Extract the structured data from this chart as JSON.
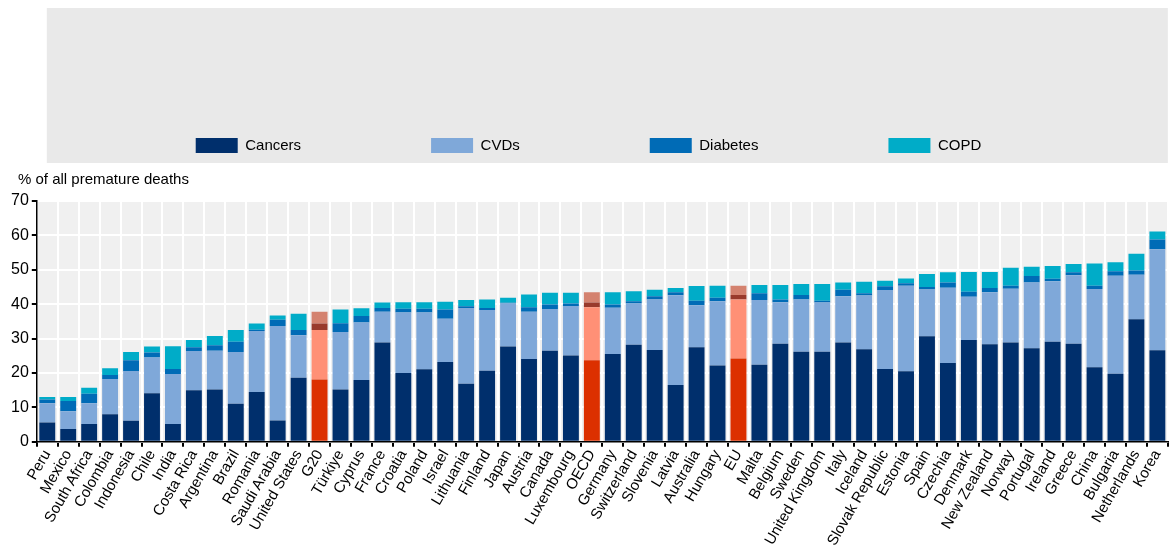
{
  "chart_data": {
    "type": "bar",
    "stacked": true,
    "ylabel": "% of all premature deaths",
    "categories": [
      "Peru",
      "Mexico",
      "South Africa",
      "Colombia",
      "Indonesia",
      "Chile",
      "India",
      "Costa Rica",
      "Argentina",
      "Brazil",
      "Romania",
      "Saudi Arabia",
      "United States",
      "G20",
      "Türkiye",
      "Cyprus",
      "France",
      "Croatia",
      "Poland",
      "Israel",
      "Lithuania",
      "Finland",
      "Japan",
      "Austria",
      "Canada",
      "Luxembourg",
      "OECD",
      "Germany",
      "Switzerland",
      "Slovenia",
      "Latvia",
      "Australia",
      "Hungary",
      "EU",
      "Malta",
      "Belgium",
      "Sweden",
      "United Kingdom",
      "Italy",
      "Iceland",
      "Slovak Republic",
      "Estonia",
      "Spain",
      "Czechia",
      "Denmark",
      "New Zealand",
      "Norway",
      "Portugal",
      "Ireland",
      "Greece",
      "China",
      "Bulgaria",
      "Netherlands",
      "Korea"
    ],
    "series": [
      {
        "name": "Cancers",
        "color": "#002f6c",
        "colors": [
          "#002f6c",
          "#002f6c",
          "#002f6c",
          "#002f6c",
          "#002f6c",
          "#002f6c",
          "#002f6c",
          "#002f6c",
          "#002f6c",
          "#002f6c",
          "#002f6c",
          "#002f6c",
          "#002f6c",
          "#dc3000",
          "#002f6c",
          "#002f6c",
          "#002f6c",
          "#002f6c",
          "#002f6c",
          "#002f6c",
          "#002f6c",
          "#002f6c",
          "#002f6c",
          "#002f6c",
          "#002f6c",
          "#002f6c",
          "#dc3000",
          "#002f6c",
          "#002f6c",
          "#002f6c",
          "#002f6c",
          "#002f6c",
          "#002f6c",
          "#dc3000",
          "#002f6c",
          "#002f6c",
          "#002f6c",
          "#002f6c",
          "#002f6c",
          "#002f6c",
          "#002f6c",
          "#002f6c",
          "#002f6c",
          "#002f6c",
          "#002f6c",
          "#002f6c",
          "#002f6c",
          "#002f6c",
          "#002f6c",
          "#002f6c",
          "#002f6c",
          "#002f6c",
          "#002f6c",
          "#002f6c"
        ],
        "values": [
          5.6,
          3.7,
          5.2,
          8.0,
          6.1,
          14.1,
          5.2,
          15.0,
          15.2,
          11.1,
          14.5,
          6.2,
          18.6,
          18.1,
          15.2,
          18.0,
          28.9,
          20.0,
          21.1,
          23.2,
          16.9,
          20.7,
          27.7,
          24.1,
          26.5,
          25.1,
          23.7,
          25.5,
          28.2,
          26.7,
          16.5,
          27.5,
          22.2,
          24.2,
          22.4,
          28.5,
          26.2,
          26.2,
          28.9,
          26.9,
          21.2,
          20.5,
          30.7,
          22.9,
          29.6,
          28.4,
          28.9,
          27.2,
          29.1,
          28.5,
          21.7,
          19.8,
          35.6,
          26.6
        ]
      },
      {
        "name": "CVDs",
        "color": "#7fa8d9",
        "colors": [
          "#7fa8d9",
          "#7fa8d9",
          "#7fa8d9",
          "#7fa8d9",
          "#7fa8d9",
          "#7fa8d9",
          "#7fa8d9",
          "#7fa8d9",
          "#7fa8d9",
          "#7fa8d9",
          "#7fa8d9",
          "#7fa8d9",
          "#7fa8d9",
          "#ff9076",
          "#7fa8d9",
          "#7fa8d9",
          "#7fa8d9",
          "#7fa8d9",
          "#7fa8d9",
          "#7fa8d9",
          "#7fa8d9",
          "#7fa8d9",
          "#7fa8d9",
          "#7fa8d9",
          "#7fa8d9",
          "#7fa8d9",
          "#ff9076",
          "#7fa8d9",
          "#7fa8d9",
          "#7fa8d9",
          "#7fa8d9",
          "#7fa8d9",
          "#7fa8d9",
          "#ff9076",
          "#7fa8d9",
          "#7fa8d9",
          "#7fa8d9",
          "#7fa8d9",
          "#7fa8d9",
          "#7fa8d9",
          "#7fa8d9",
          "#7fa8d9",
          "#7fa8d9",
          "#7fa8d9",
          "#7fa8d9",
          "#7fa8d9",
          "#7fa8d9",
          "#7fa8d9",
          "#7fa8d9",
          "#7fa8d9",
          "#7fa8d9",
          "#7fa8d9",
          "#7fa8d9",
          "#7fa8d9"
        ],
        "values": [
          5.6,
          5.2,
          6.0,
          10.3,
          14.5,
          10.4,
          14.5,
          11.4,
          11.3,
          15.0,
          17.7,
          27.5,
          12.4,
          14.4,
          16.7,
          16.7,
          8.9,
          17.6,
          16.5,
          12.6,
          22.0,
          17.6,
          12.5,
          13.7,
          12.1,
          14.4,
          15.4,
          13.5,
          12.0,
          14.7,
          26.1,
          12.2,
          18.7,
          17.2,
          18.8,
          12.1,
          15.2,
          14.3,
          13.4,
          15.6,
          22.9,
          24.9,
          13.6,
          21.9,
          12.6,
          15.1,
          15.6,
          19.1,
          17.6,
          19.9,
          22.7,
          28.5,
          13.0,
          29.4
        ]
      },
      {
        "name": "Diabetes",
        "color": "#006bb6",
        "colors": [
          "#006bb6",
          "#006bb6",
          "#006bb6",
          "#006bb6",
          "#006bb6",
          "#006bb6",
          "#006bb6",
          "#006bb6",
          "#006bb6",
          "#006bb6",
          "#006bb6",
          "#006bb6",
          "#006bb6",
          "#993a2c",
          "#006bb6",
          "#006bb6",
          "#006bb6",
          "#006bb6",
          "#006bb6",
          "#006bb6",
          "#006bb6",
          "#006bb6",
          "#006bb6",
          "#006bb6",
          "#006bb6",
          "#006bb6",
          "#993a2c",
          "#006bb6",
          "#006bb6",
          "#006bb6",
          "#006bb6",
          "#006bb6",
          "#006bb6",
          "#993a2c",
          "#006bb6",
          "#006bb6",
          "#006bb6",
          "#006bb6",
          "#006bb6",
          "#006bb6",
          "#006bb6",
          "#006bb6",
          "#006bb6",
          "#006bb6",
          "#006bb6",
          "#006bb6",
          "#006bb6",
          "#006bb6",
          "#006bb6",
          "#006bb6",
          "#006bb6",
          "#006bb6",
          "#006bb6",
          "#006bb6"
        ],
        "values": [
          1.1,
          3.0,
          2.8,
          1.1,
          3.1,
          1.5,
          1.5,
          1.1,
          1.6,
          3.0,
          0.4,
          1.8,
          1.5,
          1.9,
          2.6,
          1.9,
          1.1,
          1.1,
          1.1,
          2.7,
          0.5,
          0.6,
          0.2,
          1.3,
          1.3,
          0.7,
          1.4,
          0.9,
          0.7,
          0.9,
          0.9,
          1.3,
          1.0,
          1.3,
          2.0,
          0.8,
          1.3,
          0.5,
          1.9,
          0.7,
          1.1,
          0.7,
          0.7,
          1.5,
          1.4,
          1.2,
          0.9,
          1.9,
          0.7,
          0.9,
          1.0,
          1.3,
          1.2,
          2.8
        ]
      },
      {
        "name": "COPD",
        "color": "#00acc8",
        "colors": [
          "#00acc8",
          "#00acc8",
          "#00acc8",
          "#00acc8",
          "#00acc8",
          "#00acc8",
          "#00acc8",
          "#00acc8",
          "#00acc8",
          "#00acc8",
          "#00acc8",
          "#00acc8",
          "#00acc8",
          "#d4826f",
          "#00acc8",
          "#00acc8",
          "#00acc8",
          "#00acc8",
          "#00acc8",
          "#00acc8",
          "#00acc8",
          "#00acc8",
          "#00acc8",
          "#00acc8",
          "#00acc8",
          "#00acc8",
          "#d4826f",
          "#00acc8",
          "#00acc8",
          "#00acc8",
          "#00acc8",
          "#00acc8",
          "#00acc8",
          "#d4826f",
          "#00acc8",
          "#00acc8",
          "#00acc8",
          "#00acc8",
          "#00acc8",
          "#00acc8",
          "#00acc8",
          "#00acc8",
          "#00acc8",
          "#00acc8",
          "#00acc8",
          "#00acc8",
          "#00acc8",
          "#00acc8",
          "#00acc8",
          "#00acc8",
          "#00acc8",
          "#00acc8",
          "#00acc8",
          "#00acc8"
        ],
        "values": [
          0.7,
          1.1,
          1.7,
          2.0,
          2.4,
          1.7,
          6.6,
          2.1,
          2.7,
          3.4,
          1.8,
          1.2,
          4.7,
          3.4,
          4.0,
          2.2,
          1.6,
          1.9,
          1.9,
          2.2,
          1.8,
          2.5,
          1.5,
          3.7,
          3.4,
          3.1,
          3.0,
          3.6,
          2.9,
          1.9,
          1.2,
          4.3,
          3.5,
          2.7,
          2.4,
          4.2,
          3.2,
          4.9,
          2.1,
          3.3,
          1.6,
          1.4,
          3.8,
          3.0,
          5.8,
          4.7,
          5.2,
          2.7,
          3.7,
          2.4,
          6.4,
          2.6,
          4.9,
          2.3
        ]
      }
    ],
    "ylim": [
      0,
      70
    ],
    "yticks": [
      0,
      10,
      20,
      30,
      40,
      50,
      60,
      70
    ],
    "grid": true,
    "legend": "top"
  }
}
